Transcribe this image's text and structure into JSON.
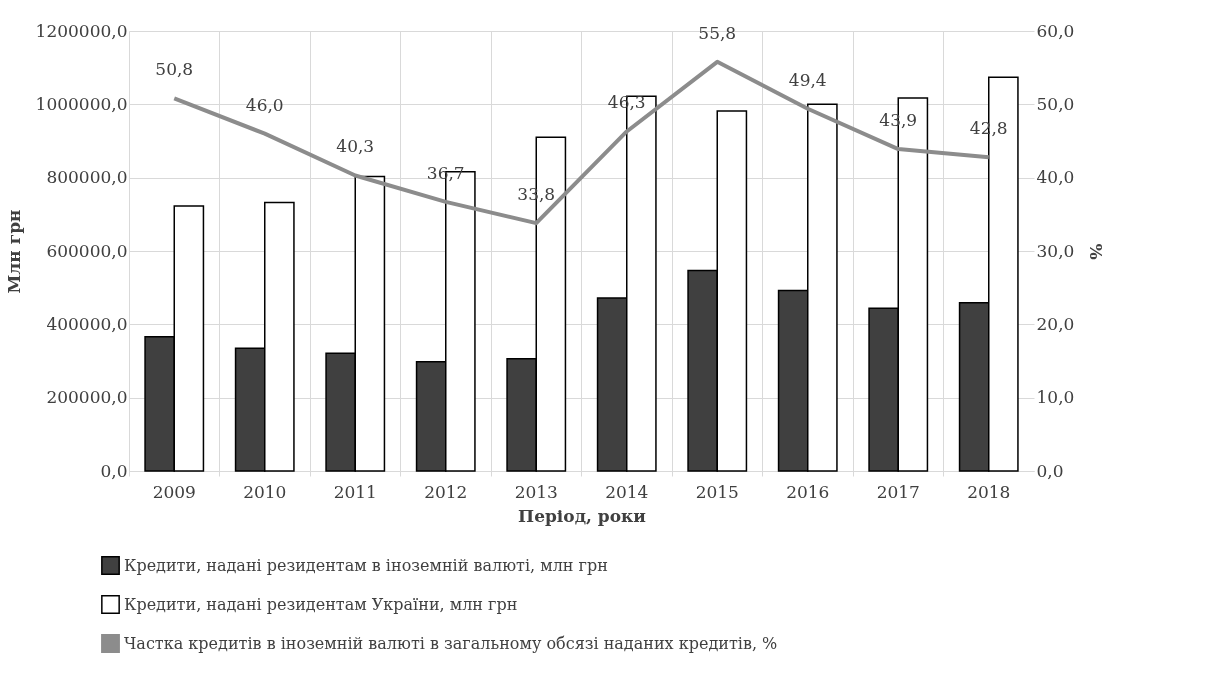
{
  "chart_data": {
    "type": "bar",
    "xlabel": "Період, роки",
    "ylabel": "Млн грн",
    "y2label": "%",
    "categories": [
      "2009",
      "2010",
      "2011",
      "2012",
      "2013",
      "2014",
      "2015",
      "2016",
      "2017",
      "2018"
    ],
    "series": [
      {
        "name": "Кредити, надані резидентам в іноземній валюті, млн грн",
        "color": "#404040",
        "values": [
          366000,
          335000,
          321000,
          298000,
          306000,
          472000,
          547000,
          492000,
          444000,
          459000
        ]
      },
      {
        "name": "Кредити, надані резидентам України, млн грн",
        "color": "#ffffff",
        "values": [
          723000,
          732000,
          803000,
          816000,
          910000,
          1022000,
          982000,
          1000000,
          1017000,
          1074000
        ]
      },
      {
        "name": "Частка кредитів в іноземній валюті в загальному обсязі наданих кредитів, %",
        "type": "line",
        "axis": "y2",
        "color": "#8c8c8c",
        "marker": "none",
        "values": [
          50.8,
          46.0,
          40.3,
          36.7,
          33.8,
          46.3,
          55.8,
          49.4,
          43.9,
          42.8
        ],
        "value_labels": [
          "50,8",
          "46,0",
          "40,3",
          "36,7",
          "33,8",
          "46,3",
          "55,8",
          "49,4",
          "43,9",
          "42,8"
        ]
      }
    ],
    "ylim": [
      0,
      1200000
    ],
    "yticks": [
      {
        "value": 0,
        "label": "0,0"
      },
      {
        "value": 200000,
        "label": "200000,0"
      },
      {
        "value": 400000,
        "label": "400000,0"
      },
      {
        "value": 600000,
        "label": "600000,0"
      },
      {
        "value": 800000,
        "label": "800000,0"
      },
      {
        "value": 1000000,
        "label": "1000000,0"
      },
      {
        "value": 1200000,
        "label": "1200000,0"
      }
    ],
    "y2lim": [
      0,
      60
    ],
    "y2ticks": [
      {
        "value": 0,
        "label": "0,0"
      },
      {
        "value": 10,
        "label": "10,0"
      },
      {
        "value": 20,
        "label": "20,0"
      },
      {
        "value": 30,
        "label": "30,0"
      },
      {
        "value": 40,
        "label": "40,0"
      },
      {
        "value": 50,
        "label": "50,0"
      },
      {
        "value": 60,
        "label": "60,0"
      }
    ],
    "grid": true,
    "legend": "bottom"
  }
}
